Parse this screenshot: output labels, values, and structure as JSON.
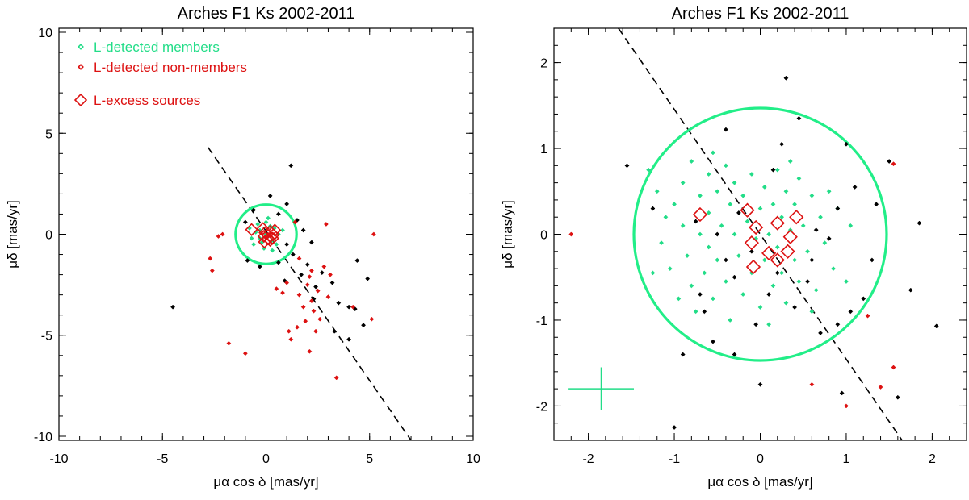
{
  "chart_data": [
    {
      "type": "scatter",
      "title": "Arches F1 Ks 2002-2011",
      "xlabel": "μα cos δ [mas/yr]",
      "ylabel": "μδ [mas/yr]",
      "xlim": [
        -10,
        10
      ],
      "ylim": [
        -10.2,
        10.2
      ],
      "xticks": [
        -10,
        -5,
        0,
        5,
        10
      ],
      "yticks": [
        -10,
        -5,
        0,
        5,
        10
      ],
      "legend_position": "top-left",
      "legend": [
        {
          "label": "L-detected members",
          "color": "#22dd88",
          "marker": "small-diamond"
        },
        {
          "label": "L-detected non-members",
          "color": "#dd1111",
          "marker": "small-diamond"
        },
        {
          "label": "L-excess sources",
          "color": "#dd1111",
          "marker": "open-diamond"
        }
      ],
      "circle": {
        "center": [
          0,
          0
        ],
        "radius": 1.47,
        "color": "#22ee88"
      },
      "dashed_line": {
        "x": [
          -2.8,
          7.0
        ],
        "y": [
          4.3,
          -10.2
        ]
      },
      "series": [
        {
          "name": "L-detected members",
          "color": "#22dd88",
          "points": [
            [
              -0.3,
              0.2
            ],
            [
              0.1,
              -0.1
            ],
            [
              -0.5,
              0.1
            ],
            [
              0.4,
              0.3
            ],
            [
              -0.2,
              -0.4
            ],
            [
              0.3,
              -0.3
            ],
            [
              -0.7,
              -0.2
            ],
            [
              0.6,
              0.0
            ],
            [
              0.0,
              0.6
            ],
            [
              -0.1,
              -0.7
            ],
            [
              0.5,
              -0.5
            ],
            [
              -0.4,
              0.5
            ],
            [
              0.2,
              0.4
            ],
            [
              -0.6,
              -0.5
            ],
            [
              0.8,
              0.2
            ],
            [
              -0.8,
              0.3
            ],
            [
              0.1,
              0.8
            ],
            [
              0.3,
              -0.8
            ],
            [
              -0.3,
              -0.2
            ],
            [
              0.0,
              0.0
            ]
          ]
        },
        {
          "name": "non-members (black)",
          "color": "#000000",
          "points": [
            [
              -4.5,
              -3.6
            ],
            [
              1.2,
              3.4
            ],
            [
              0.2,
              1.9
            ],
            [
              -0.6,
              1.2
            ],
            [
              1.0,
              1.5
            ],
            [
              1.5,
              0.7
            ],
            [
              1.8,
              0.2
            ],
            [
              2.2,
              -0.4
            ],
            [
              1.3,
              -1.0
            ],
            [
              0.6,
              -1.4
            ],
            [
              2.0,
              -1.5
            ],
            [
              2.7,
              -1.9
            ],
            [
              3.2,
              -2.4
            ],
            [
              2.4,
              -2.6
            ],
            [
              3.5,
              -3.4
            ],
            [
              4.0,
              -3.6
            ],
            [
              4.3,
              -3.7
            ],
            [
              4.7,
              -4.5
            ],
            [
              3.3,
              -4.8
            ],
            [
              4.0,
              -5.2
            ],
            [
              2.3,
              -3.2
            ],
            [
              1.7,
              -2.0
            ],
            [
              -0.9,
              -1.3
            ],
            [
              0.9,
              -2.3
            ],
            [
              4.4,
              -1.3
            ],
            [
              4.9,
              -2.2
            ],
            [
              0.6,
              1.0
            ],
            [
              -0.3,
              -1.6
            ],
            [
              1.0,
              -0.5
            ],
            [
              -1.0,
              0.6
            ]
          ]
        },
        {
          "name": "L-detected non-members",
          "color": "#dd1111",
          "points": [
            [
              -2.7,
              -1.2
            ],
            [
              -2.6,
              -1.8
            ],
            [
              -2.3,
              -0.1
            ],
            [
              -2.1,
              0.0
            ],
            [
              -1.8,
              -5.4
            ],
            [
              -1.0,
              -5.9
            ],
            [
              0.5,
              -2.7
            ],
            [
              0.8,
              -2.9
            ],
            [
              1.0,
              -2.4
            ],
            [
              1.1,
              -4.8
            ],
            [
              1.2,
              -5.2
            ],
            [
              1.5,
              -4.6
            ],
            [
              1.6,
              -3.0
            ],
            [
              1.8,
              -3.6
            ],
            [
              1.9,
              -4.3
            ],
            [
              2.0,
              -2.5
            ],
            [
              2.2,
              -3.3
            ],
            [
              2.3,
              -3.8
            ],
            [
              2.4,
              -4.8
            ],
            [
              2.6,
              -4.2
            ],
            [
              2.5,
              -2.8
            ],
            [
              2.8,
              -1.6
            ],
            [
              3.1,
              -2.0
            ],
            [
              3.0,
              -3.1
            ],
            [
              2.2,
              -1.8
            ],
            [
              1.6,
              -1.2
            ],
            [
              2.1,
              -2.1
            ],
            [
              3.4,
              -7.1
            ],
            [
              4.2,
              -3.6
            ],
            [
              5.1,
              -4.2
            ],
            [
              5.2,
              0.0
            ],
            [
              1.4,
              0.6
            ],
            [
              2.9,
              0.5
            ],
            [
              2.1,
              -5.8
            ]
          ]
        },
        {
          "name": "L-excess sources",
          "color": "#dd1111",
          "marker": "open-diamond",
          "points": [
            [
              -0.7,
              0.23
            ],
            [
              -0.15,
              0.28
            ],
            [
              -0.05,
              0.08
            ],
            [
              0.2,
              0.13
            ],
            [
              0.42,
              0.2
            ],
            [
              0.35,
              -0.03
            ],
            [
              -0.1,
              -0.1
            ],
            [
              0.1,
              -0.22
            ],
            [
              0.2,
              -0.3
            ],
            [
              0.32,
              -0.2
            ],
            [
              -0.08,
              -0.38
            ]
          ]
        }
      ]
    },
    {
      "type": "scatter",
      "title": "Arches F1 Ks 2002-2011",
      "xlabel": "μα cos δ [mas/yr]",
      "ylabel": "μδ [mas/yr]",
      "xlim": [
        -2.4,
        2.4
      ],
      "ylim": [
        -2.4,
        2.4
      ],
      "xticks": [
        -2,
        -1,
        0,
        1,
        2
      ],
      "yticks": [
        -2,
        -1,
        0,
        1,
        2
      ],
      "circle": {
        "center": [
          0,
          0
        ],
        "radius": 1.47,
        "color": "#22ee88"
      },
      "dashed_line": {
        "x": [
          -1.65,
          1.65
        ],
        "y": [
          2.4,
          -2.4
        ]
      },
      "error_cross": {
        "center": [
          -1.85,
          -1.8
        ],
        "half_width": 0.38,
        "half_height": 0.25,
        "color": "#22dd88"
      },
      "series": [
        {
          "name": "L-detected members",
          "color": "#22dd88",
          "points": [
            [
              -1.3,
              0.75
            ],
            [
              -1.2,
              0.5
            ],
            [
              -1.1,
              0.2
            ],
            [
              -1.15,
              -0.1
            ],
            [
              -1.0,
              0.35
            ],
            [
              -1.05,
              -0.4
            ],
            [
              -0.9,
              0.6
            ],
            [
              -0.9,
              0.1
            ],
            [
              -0.85,
              -0.25
            ],
            [
              -0.8,
              -0.6
            ],
            [
              -0.8,
              0.85
            ],
            [
              -0.75,
              -0.9
            ],
            [
              -0.7,
              0.45
            ],
            [
              -0.7,
              0.0
            ],
            [
              -0.65,
              -0.45
            ],
            [
              -0.6,
              0.7
            ],
            [
              -0.6,
              0.25
            ],
            [
              -0.6,
              -0.15
            ],
            [
              -0.55,
              -0.75
            ],
            [
              -0.5,
              0.5
            ],
            [
              -0.5,
              -0.3
            ],
            [
              -0.45,
              0.1
            ],
            [
              -0.4,
              0.8
            ],
            [
              -0.4,
              -0.55
            ],
            [
              -0.35,
              0.35
            ],
            [
              -0.35,
              -1.0
            ],
            [
              -0.3,
              0.0
            ],
            [
              -0.3,
              0.6
            ],
            [
              -0.25,
              -0.25
            ],
            [
              -0.2,
              0.45
            ],
            [
              -0.2,
              -0.7
            ],
            [
              -0.15,
              0.15
            ],
            [
              -0.1,
              -0.45
            ],
            [
              -0.1,
              0.7
            ],
            [
              -0.05,
              -0.05
            ],
            [
              0.0,
              0.3
            ],
            [
              0.0,
              -0.85
            ],
            [
              0.05,
              0.55
            ],
            [
              0.05,
              -0.3
            ],
            [
              0.1,
              0.0
            ],
            [
              0.1,
              -1.05
            ],
            [
              0.15,
              0.35
            ],
            [
              0.15,
              -0.6
            ],
            [
              0.2,
              0.75
            ],
            [
              0.2,
              -0.15
            ],
            [
              0.25,
              0.2
            ],
            [
              0.25,
              -0.45
            ],
            [
              0.3,
              0.5
            ],
            [
              0.3,
              -0.8
            ],
            [
              0.35,
              0.05
            ],
            [
              0.4,
              -0.3
            ],
            [
              0.4,
              0.35
            ],
            [
              0.45,
              0.65
            ],
            [
              0.45,
              -0.55
            ],
            [
              0.5,
              0.1
            ],
            [
              0.55,
              -0.2
            ],
            [
              0.6,
              0.45
            ],
            [
              0.65,
              -0.65
            ],
            [
              0.7,
              0.2
            ],
            [
              0.75,
              -0.1
            ],
            [
              0.8,
              0.5
            ],
            [
              0.85,
              -0.4
            ],
            [
              1.05,
              0.1
            ],
            [
              1.0,
              -0.55
            ],
            [
              0.9,
              0.3
            ],
            [
              -1.25,
              -0.45
            ],
            [
              -0.95,
              -0.75
            ],
            [
              -0.55,
              0.95
            ],
            [
              0.35,
              0.85
            ],
            [
              0.6,
              -0.9
            ]
          ]
        },
        {
          "name": "non-members (black)",
          "color": "#000000",
          "points": [
            [
              -1.55,
              0.8
            ],
            [
              -1.25,
              0.3
            ],
            [
              -1.0,
              -2.25
            ],
            [
              -0.7,
              -0.7
            ],
            [
              -0.65,
              -0.9
            ],
            [
              -0.5,
              0.0
            ],
            [
              -0.55,
              -1.25
            ],
            [
              -0.4,
              -0.3
            ],
            [
              -0.3,
              -0.5
            ],
            [
              -0.05,
              -1.05
            ],
            [
              0.0,
              -1.75
            ],
            [
              0.1,
              -0.7
            ],
            [
              0.2,
              -0.45
            ],
            [
              0.25,
              1.05
            ],
            [
              0.15,
              0.75
            ],
            [
              0.4,
              -0.85
            ],
            [
              0.45,
              1.35
            ],
            [
              0.55,
              -0.55
            ],
            [
              0.6,
              -0.3
            ],
            [
              0.7,
              -1.15
            ],
            [
              0.9,
              -1.05
            ],
            [
              0.9,
              0.3
            ],
            [
              1.0,
              1.05
            ],
            [
              1.05,
              -0.9
            ],
            [
              1.1,
              0.55
            ],
            [
              1.2,
              -0.75
            ],
            [
              1.35,
              0.35
            ],
            [
              1.5,
              0.85
            ],
            [
              1.6,
              -1.9
            ],
            [
              1.75,
              -0.65
            ],
            [
              1.85,
              0.13
            ],
            [
              2.05,
              -1.07
            ],
            [
              0.3,
              1.82
            ],
            [
              -0.4,
              1.22
            ],
            [
              -0.75,
              0.15
            ],
            [
              -0.1,
              -0.2
            ],
            [
              0.8,
              -0.05
            ],
            [
              -0.3,
              -1.4
            ],
            [
              0.95,
              -1.85
            ],
            [
              -0.9,
              -1.4
            ],
            [
              -0.25,
              0.25
            ],
            [
              0.65,
              0.05
            ],
            [
              1.3,
              -0.3
            ]
          ]
        },
        {
          "name": "L-detected non-members",
          "color": "#dd1111",
          "points": [
            [
              -2.2,
              0.0
            ],
            [
              1.55,
              0.82
            ],
            [
              1.25,
              -0.95
            ],
            [
              0.6,
              -1.75
            ],
            [
              1.4,
              -1.78
            ],
            [
              1.0,
              -2.0
            ],
            [
              1.55,
              -1.55
            ]
          ]
        },
        {
          "name": "L-excess sources",
          "color": "#dd1111",
          "marker": "open-diamond",
          "points": [
            [
              -0.7,
              0.23
            ],
            [
              -0.15,
              0.28
            ],
            [
              -0.05,
              0.08
            ],
            [
              0.2,
              0.13
            ],
            [
              0.42,
              0.2
            ],
            [
              0.35,
              -0.03
            ],
            [
              -0.1,
              -0.1
            ],
            [
              0.1,
              -0.22
            ],
            [
              0.2,
              -0.3
            ],
            [
              0.32,
              -0.2
            ],
            [
              -0.08,
              -0.38
            ]
          ]
        }
      ]
    }
  ]
}
